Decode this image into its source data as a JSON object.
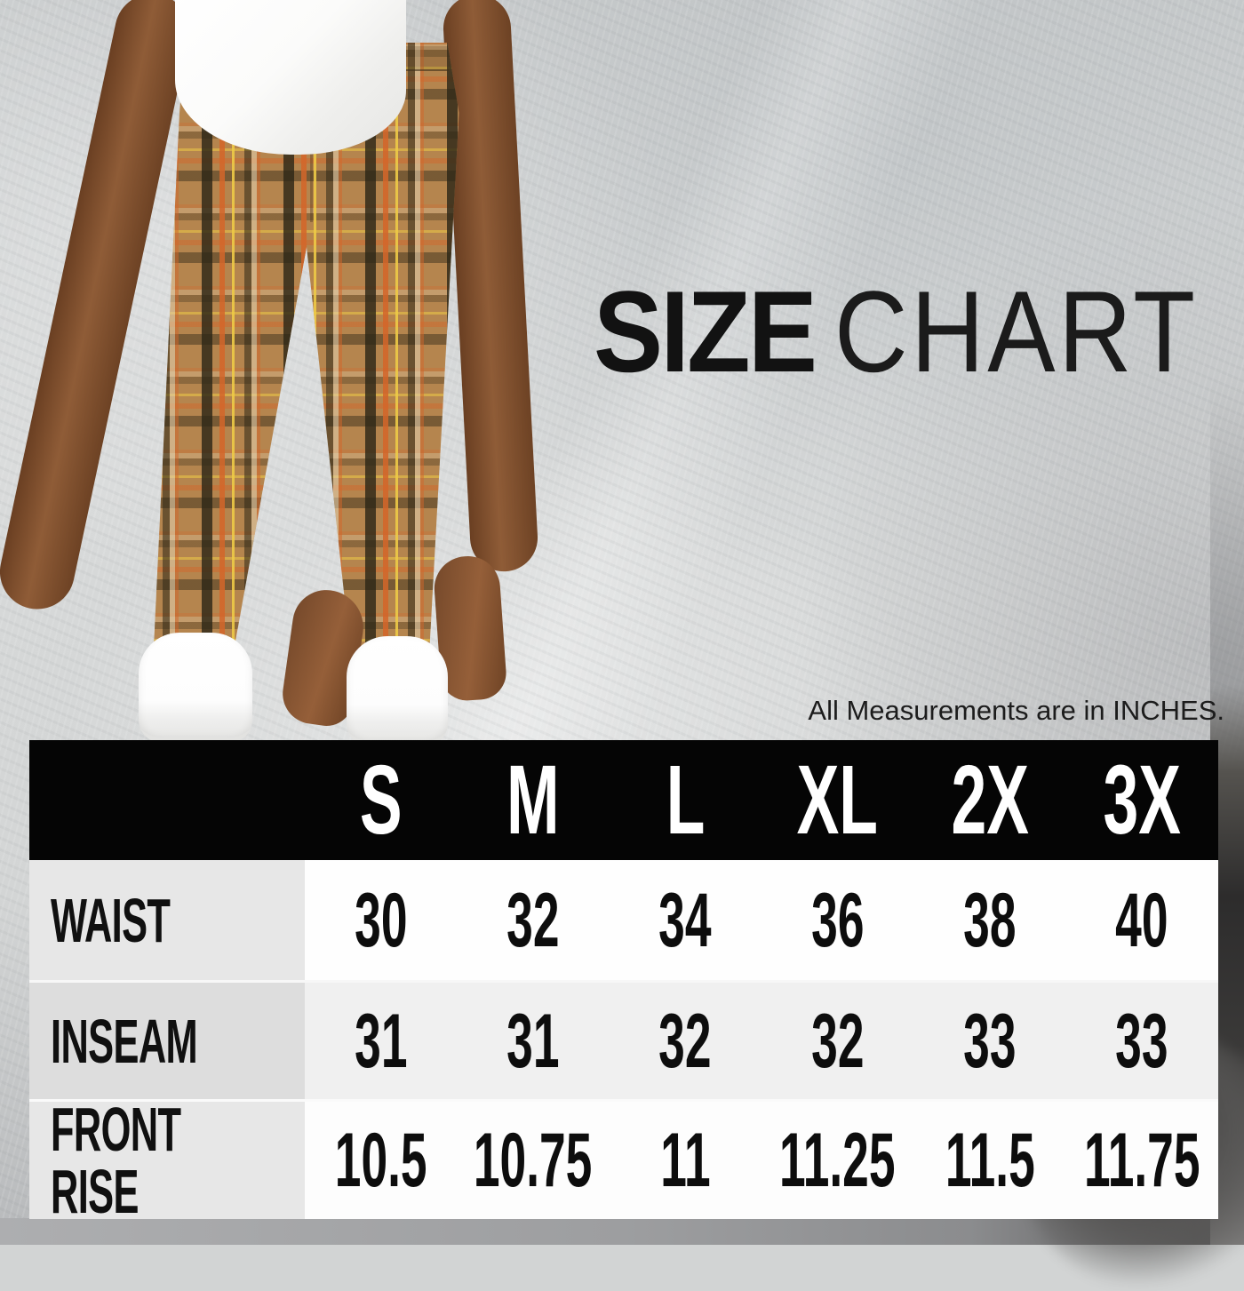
{
  "title": {
    "bold": "SIZE",
    "light": "CHART"
  },
  "note": "All Measurements are in INCHES.",
  "table": {
    "columns": [
      "S",
      "M",
      "L",
      "XL",
      "2X",
      "3X"
    ],
    "rows": [
      {
        "label": "WAIST",
        "values": [
          "30",
          "32",
          "34",
          "36",
          "38",
          "40"
        ]
      },
      {
        "label": "INSEAM",
        "values": [
          "31",
          "31",
          "32",
          "32",
          "33",
          "33"
        ]
      },
      {
        "label": "FRONT RISE",
        "values": [
          "10.5",
          "10.75",
          "11",
          "11.25",
          "11.5",
          "11.75"
        ]
      }
    ]
  },
  "chart_data": {
    "type": "table",
    "title": "SIZE CHART",
    "note": "All Measurements are in INCHES.",
    "units": "inches",
    "categories": [
      "S",
      "M",
      "L",
      "XL",
      "2X",
      "3X"
    ],
    "series": [
      {
        "name": "WAIST",
        "values": [
          30,
          32,
          34,
          36,
          38,
          40
        ]
      },
      {
        "name": "INSEAM",
        "values": [
          31,
          31,
          32,
          32,
          33,
          33
        ]
      },
      {
        "name": "FRONT RISE",
        "values": [
          10.5,
          10.75,
          11,
          11.25,
          11.5,
          11.75
        ]
      }
    ]
  },
  "colors": {
    "header_bg": "#050505",
    "header_text": "#ffffff",
    "label_cell_bg": "#e7e7e7",
    "alt_row_bg": "#f0f0f0",
    "value_text": "#0d0d0d",
    "background_grey": "#d2d4d4",
    "plaid_base": "#b5854e",
    "plaid_dark": "#2d2717",
    "plaid_orange": "#d46529",
    "plaid_yellow": "#eeca46"
  }
}
